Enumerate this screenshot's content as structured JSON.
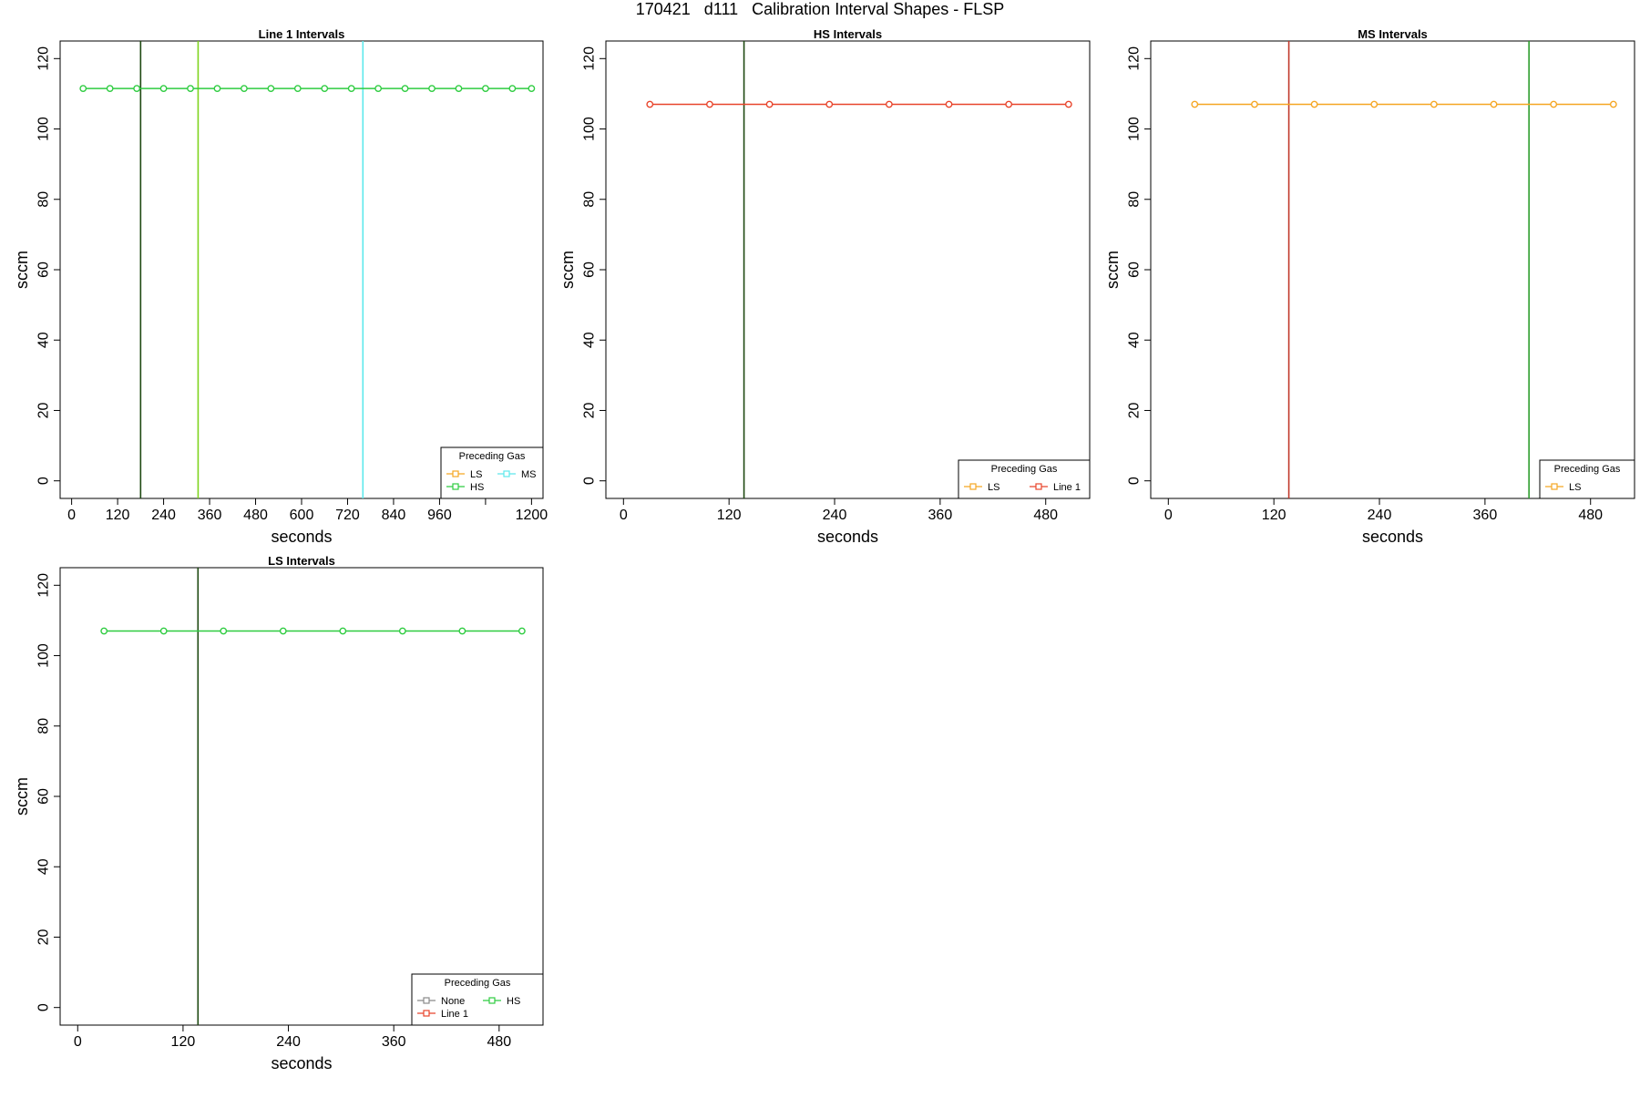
{
  "title": "170421   d111   Calibration Interval Shapes - FLSP",
  "colors": {
    "LS": "#f5a623",
    "HS": "#2ecc40",
    "MS": "#5ee8ec",
    "Line 1": "#e8452c",
    "None": "#8a8a8a",
    "vline_dark": "#1f4a12",
    "vline_red": "#c0392b",
    "vline_green": "#2e9e2e",
    "vline_lime": "#7fd41e",
    "vline_cyan": "#5ee8ec"
  },
  "chart_data": [
    {
      "type": "line",
      "title": "Line 1 Intervals",
      "xlabel": "seconds",
      "ylabel": "sccm",
      "xlim": [
        -30,
        1230
      ],
      "ylim": [
        -5,
        125
      ],
      "xticks": [
        0,
        120,
        240,
        360,
        480,
        600,
        720,
        840,
        960,
        1080,
        1200
      ],
      "xtick_labels": [
        "0",
        "120",
        "240",
        "360",
        "480",
        "600",
        "720",
        "840",
        "960",
        "",
        "1200"
      ],
      "yticks": [
        0,
        20,
        40,
        60,
        80,
        100,
        120
      ],
      "vlines": [
        {
          "x": 180,
          "color_key": "vline_dark"
        },
        {
          "x": 330,
          "color_key": "vline_lime"
        },
        {
          "x": 760,
          "color_key": "vline_cyan"
        }
      ],
      "series": [
        {
          "name": "HS",
          "color_key": "HS",
          "x": [
            30,
            100,
            170,
            240,
            310,
            380,
            450,
            520,
            590,
            660,
            730,
            800,
            870,
            940,
            1010,
            1080,
            1150,
            1200
          ],
          "y": [
            111.5,
            111.5,
            111.5,
            111.5,
            111.5,
            111.5,
            111.5,
            111.5,
            111.5,
            111.5,
            111.5,
            111.5,
            111.5,
            111.5,
            111.5,
            111.5,
            111.5,
            111.5
          ]
        }
      ],
      "legend": {
        "title": "Preceding Gas",
        "columns": 2,
        "entries": [
          {
            "label": "LS",
            "color_key": "LS"
          },
          {
            "label": "MS",
            "color_key": "MS"
          },
          {
            "label": "HS",
            "color_key": "HS"
          }
        ]
      }
    },
    {
      "type": "line",
      "title": "HS Intervals",
      "xlabel": "seconds",
      "ylabel": "sccm",
      "xlim": [
        -20,
        530
      ],
      "ylim": [
        -5,
        125
      ],
      "xticks": [
        0,
        120,
        240,
        360,
        480
      ],
      "xtick_labels": [
        "0",
        "120",
        "240",
        "360",
        "480"
      ],
      "yticks": [
        0,
        20,
        40,
        60,
        80,
        100,
        120
      ],
      "vlines": [
        {
          "x": 137,
          "color_key": "vline_dark"
        }
      ],
      "series": [
        {
          "name": "Line 1",
          "color_key": "Line 1",
          "x": [
            30,
            98,
            166,
            234,
            302,
            370,
            438,
            506
          ],
          "y": [
            107,
            107,
            107,
            107,
            107,
            107,
            107,
            107
          ]
        }
      ],
      "legend": {
        "title": "Preceding Gas",
        "columns": 2,
        "entries": [
          {
            "label": "LS",
            "color_key": "LS"
          },
          {
            "label": "Line 1",
            "color_key": "Line 1"
          }
        ]
      }
    },
    {
      "type": "line",
      "title": "MS Intervals",
      "xlabel": "seconds",
      "ylabel": "sccm",
      "xlim": [
        -20,
        530
      ],
      "ylim": [
        -5,
        125
      ],
      "xticks": [
        0,
        120,
        240,
        360,
        480
      ],
      "xtick_labels": [
        "0",
        "120",
        "240",
        "360",
        "480"
      ],
      "yticks": [
        0,
        20,
        40,
        60,
        80,
        100,
        120
      ],
      "vlines": [
        {
          "x": 137,
          "color_key": "vline_red"
        },
        {
          "x": 410,
          "color_key": "vline_green"
        }
      ],
      "series": [
        {
          "name": "LS",
          "color_key": "LS",
          "x": [
            30,
            98,
            166,
            234,
            302,
            370,
            438,
            506
          ],
          "y": [
            107,
            107,
            107,
            107,
            107,
            107,
            107,
            107
          ]
        }
      ],
      "legend": {
        "title": "Preceding Gas",
        "columns": 1,
        "entries": [
          {
            "label": "LS",
            "color_key": "LS"
          }
        ]
      }
    },
    {
      "type": "line",
      "title": "LS Intervals",
      "xlabel": "seconds",
      "ylabel": "sccm",
      "xlim": [
        -20,
        530
      ],
      "ylim": [
        -5,
        125
      ],
      "xticks": [
        0,
        120,
        240,
        360,
        480
      ],
      "xtick_labels": [
        "0",
        "120",
        "240",
        "360",
        "480"
      ],
      "yticks": [
        0,
        20,
        40,
        60,
        80,
        100,
        120
      ],
      "vlines": [
        {
          "x": 137,
          "color_key": "vline_dark"
        }
      ],
      "series": [
        {
          "name": "HS",
          "color_key": "HS",
          "x": [
            30,
            98,
            166,
            234,
            302,
            370,
            438,
            506
          ],
          "y": [
            107,
            107,
            107,
            107,
            107,
            107,
            107,
            107
          ]
        }
      ],
      "legend": {
        "title": "Preceding Gas",
        "columns": 2,
        "entries": [
          {
            "label": "None",
            "color_key": "None"
          },
          {
            "label": "HS",
            "color_key": "HS"
          },
          {
            "label": "Line 1",
            "color_key": "Line 1"
          }
        ]
      }
    }
  ]
}
